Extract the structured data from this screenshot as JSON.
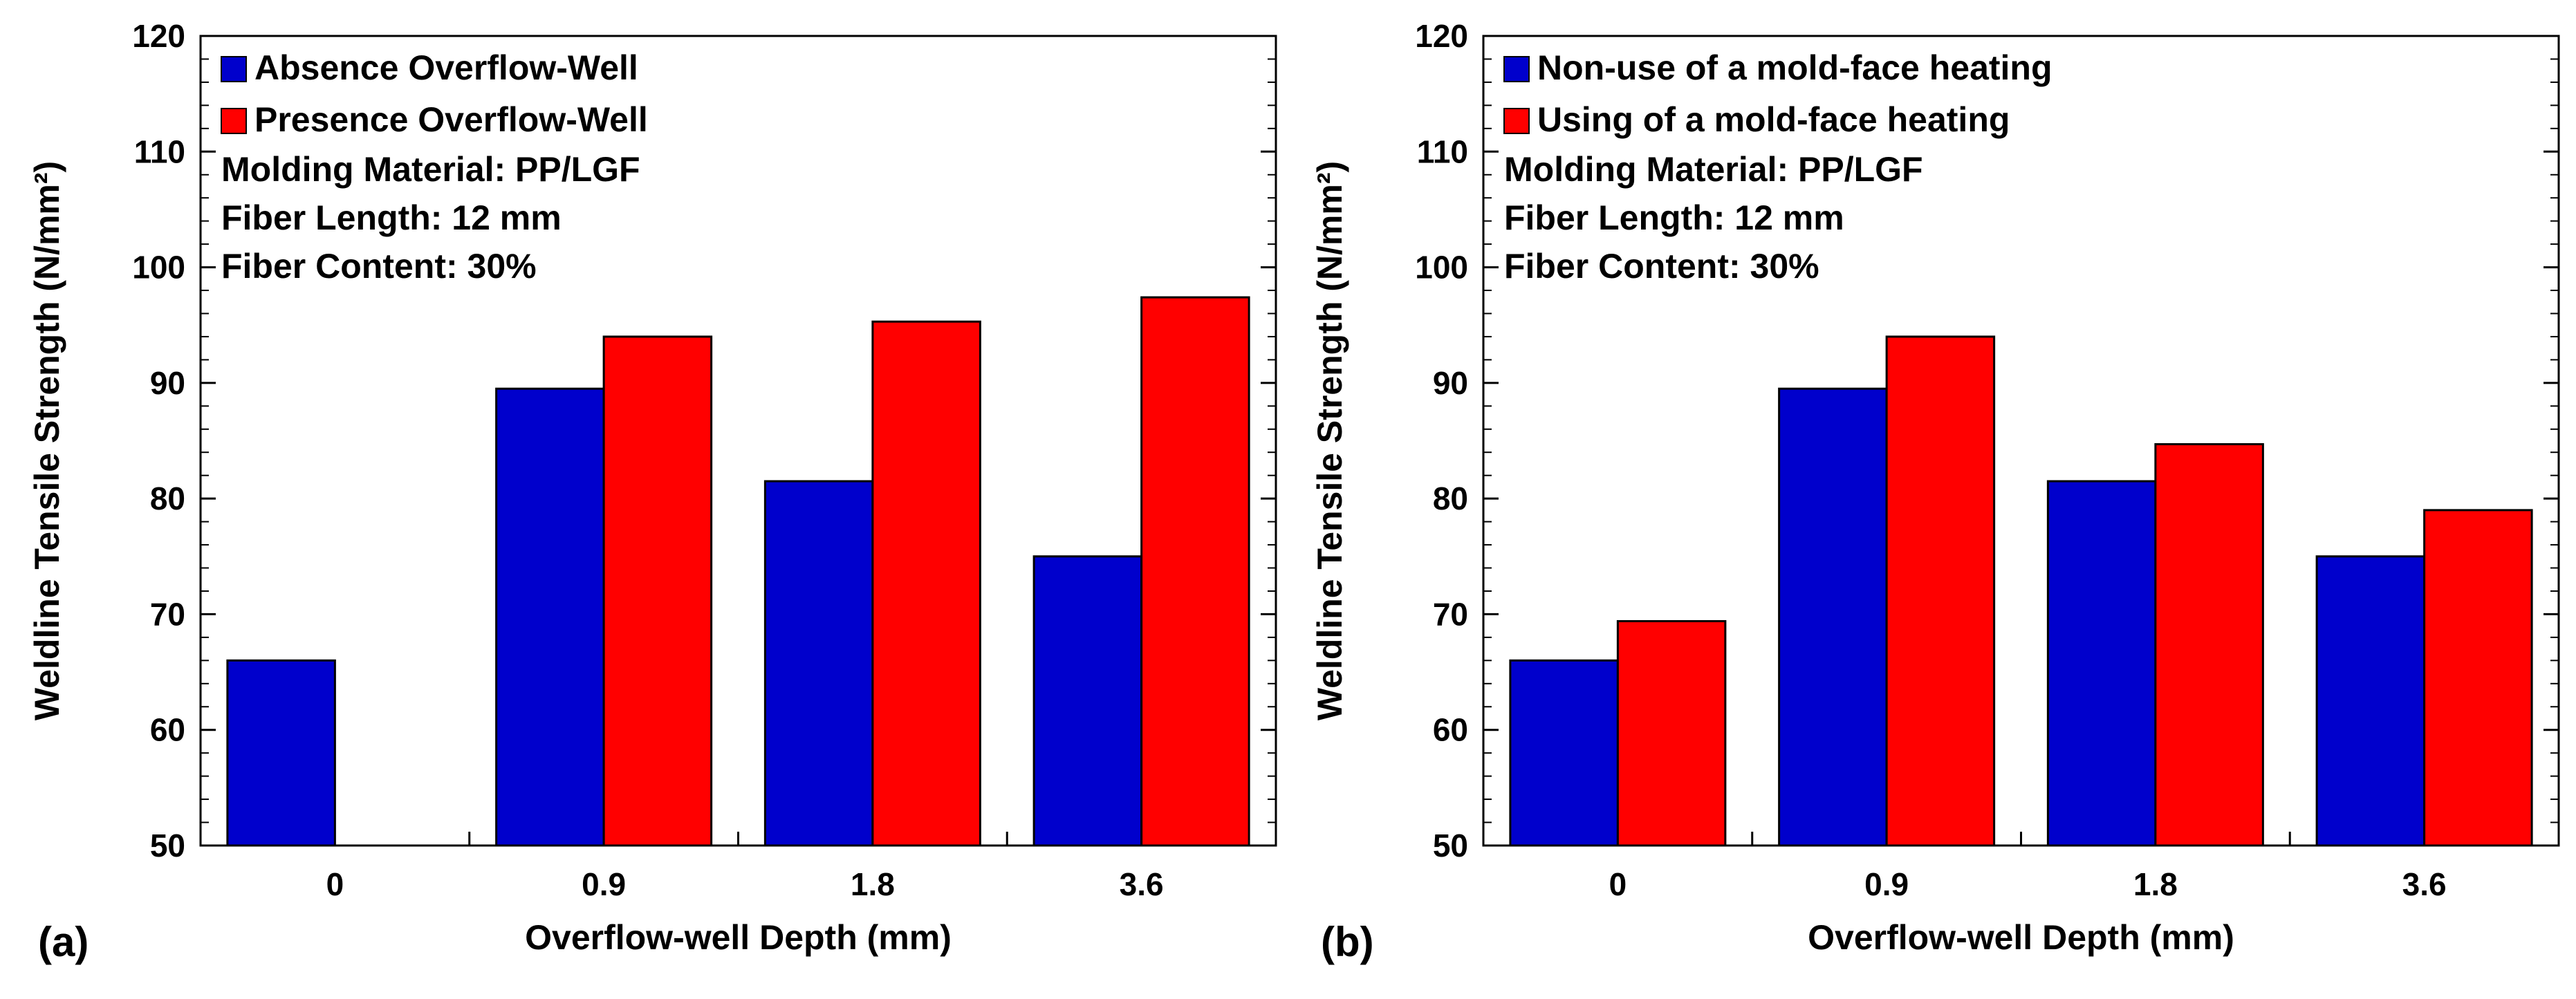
{
  "colors": {
    "series_1": "#0000cc",
    "series_2": "#ff0000",
    "axis": "#000000",
    "background": "#ffffff"
  },
  "chart_data": [
    {
      "type": "bar",
      "panel_label": "(a)",
      "title": "",
      "xlabel": "Overflow-well Depth (mm)",
      "ylabel": "Weldline Tensile Strength (N/mm²)",
      "ylim": [
        50,
        120
      ],
      "yticks": [
        "50",
        "60",
        "70",
        "80",
        "90",
        "100",
        "110",
        "120"
      ],
      "categories": [
        "0",
        "0.9",
        "1.8",
        "3.6"
      ],
      "series": [
        {
          "name": "Absence Overflow-Well",
          "values": [
            66.0,
            89.5,
            81.5,
            75.0
          ]
        },
        {
          "name": "Presence Overflow-Well",
          "values": [
            null,
            94.0,
            95.3,
            97.4
          ]
        }
      ],
      "annotations": [
        "Molding Material: PP/LGF",
        "Fiber Length: 12 mm",
        "Fiber Content: 30%"
      ],
      "legend_position": "top-left",
      "grid": false
    },
    {
      "type": "bar",
      "panel_label": "(b)",
      "title": "",
      "xlabel": "Overflow-well Depth (mm)",
      "ylabel": "Weldline Tensile Strength (N/mm²)",
      "ylim": [
        50,
        120
      ],
      "yticks": [
        "50",
        "60",
        "70",
        "80",
        "90",
        "100",
        "110",
        "120"
      ],
      "categories": [
        "0",
        "0.9",
        "1.8",
        "3.6"
      ],
      "series": [
        {
          "name": "Non-use of a mold-face heating",
          "values": [
            66.0,
            89.5,
            81.5,
            75.0
          ]
        },
        {
          "name": "Using of a mold-face heating",
          "values": [
            69.4,
            94.0,
            84.7,
            79.0
          ]
        }
      ],
      "annotations": [
        "Molding Material: PP/LGF",
        "Fiber Length: 12 mm",
        "Fiber Content: 30%"
      ],
      "legend_position": "top-left",
      "grid": false
    }
  ]
}
